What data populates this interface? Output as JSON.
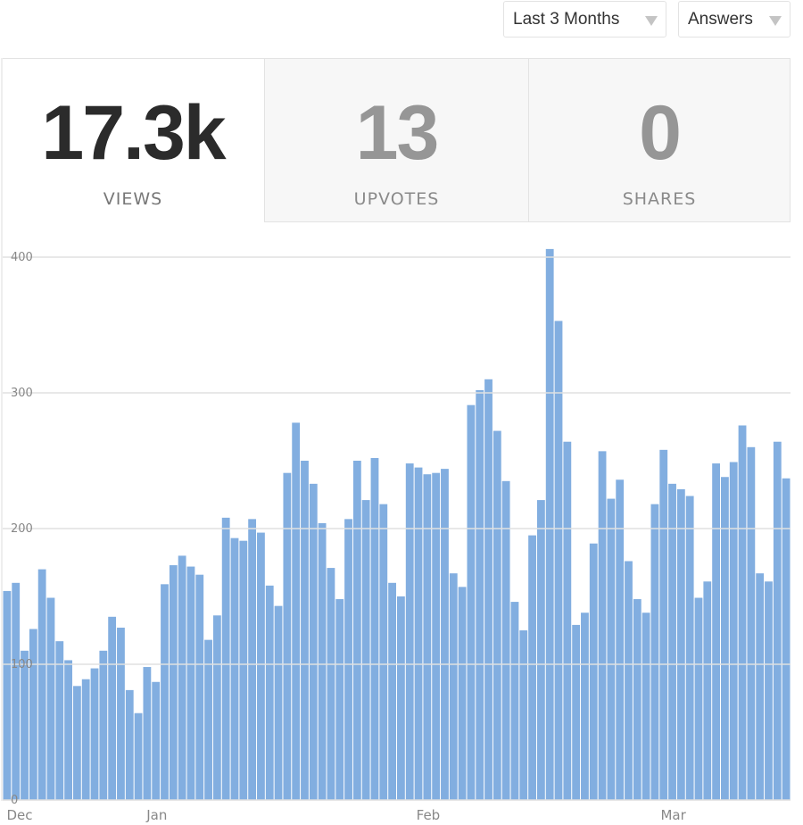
{
  "filters": {
    "range": {
      "label": "Last 3 Months"
    },
    "content_type": {
      "label": "Answers"
    }
  },
  "stats": [
    {
      "value": "17.3k",
      "label": "VIEWS",
      "selected": true
    },
    {
      "value": "13",
      "label": "UPVOTES",
      "selected": false
    },
    {
      "value": "0",
      "label": "SHARES",
      "selected": false
    }
  ],
  "chart_data": {
    "type": "bar",
    "bar_color": "#82aee0",
    "grid": true,
    "ylim": [
      0,
      400
    ],
    "yticks": [
      0,
      100,
      200,
      300,
      400
    ],
    "x_ticks": [
      {
        "label": "Dec",
        "at": "Dec 15"
      },
      {
        "label": "Jan",
        "at": "Jan 1"
      },
      {
        "label": "Feb",
        "at": "Feb 1"
      },
      {
        "label": "Mar",
        "at": "Mar 1"
      }
    ],
    "x": [
      "Dec 15",
      "Dec 16",
      "Dec 17",
      "Dec 18",
      "Dec 19",
      "Dec 20",
      "Dec 21",
      "Dec 22",
      "Dec 23",
      "Dec 24",
      "Dec 25",
      "Dec 26",
      "Dec 27",
      "Dec 28",
      "Dec 29",
      "Dec 30",
      "Dec 31",
      "Jan 1",
      "Jan 2",
      "Jan 3",
      "Jan 4",
      "Jan 5",
      "Jan 6",
      "Jan 7",
      "Jan 8",
      "Jan 9",
      "Jan 10",
      "Jan 11",
      "Jan 12",
      "Jan 13",
      "Jan 14",
      "Jan 15",
      "Jan 16",
      "Jan 17",
      "Jan 18",
      "Jan 19",
      "Jan 20",
      "Jan 21",
      "Jan 22",
      "Jan 23",
      "Jan 24",
      "Jan 25",
      "Jan 26",
      "Jan 27",
      "Jan 28",
      "Jan 29",
      "Jan 30",
      "Jan 31",
      "Feb 1",
      "Feb 2",
      "Feb 3",
      "Feb 4",
      "Feb 5",
      "Feb 6",
      "Feb 7",
      "Feb 8",
      "Feb 9",
      "Feb 10",
      "Feb 11",
      "Feb 12",
      "Feb 13",
      "Feb 14",
      "Feb 15",
      "Feb 16",
      "Feb 17",
      "Feb 18",
      "Feb 19",
      "Feb 20",
      "Feb 21",
      "Feb 22",
      "Feb 23",
      "Feb 24",
      "Feb 25",
      "Feb 26",
      "Feb 27",
      "Feb 28",
      "Mar 1",
      "Mar 2",
      "Mar 3",
      "Mar 4",
      "Mar 5",
      "Mar 6",
      "Mar 7",
      "Mar 8",
      "Mar 9",
      "Mar 10",
      "Mar 11",
      "Mar 12",
      "Mar 13",
      "Mar 14"
    ],
    "values": [
      154,
      160,
      110,
      126,
      170,
      149,
      117,
      103,
      84,
      89,
      97,
      110,
      135,
      127,
      81,
      64,
      98,
      87,
      159,
      173,
      180,
      172,
      166,
      118,
      136,
      208,
      193,
      191,
      207,
      197,
      158,
      143,
      241,
      278,
      250,
      233,
      204,
      171,
      148,
      207,
      250,
      221,
      252,
      218,
      160,
      150,
      248,
      245,
      240,
      241,
      244,
      167,
      157,
      291,
      302,
      310,
      272,
      235,
      146,
      125,
      195,
      221,
      406,
      353,
      264,
      129,
      138,
      189,
      257,
      222,
      236,
      176,
      148,
      138,
      218,
      258,
      233,
      229,
      224,
      149,
      161,
      248,
      238,
      249,
      276,
      260,
      167,
      161,
      264,
      237
    ]
  }
}
